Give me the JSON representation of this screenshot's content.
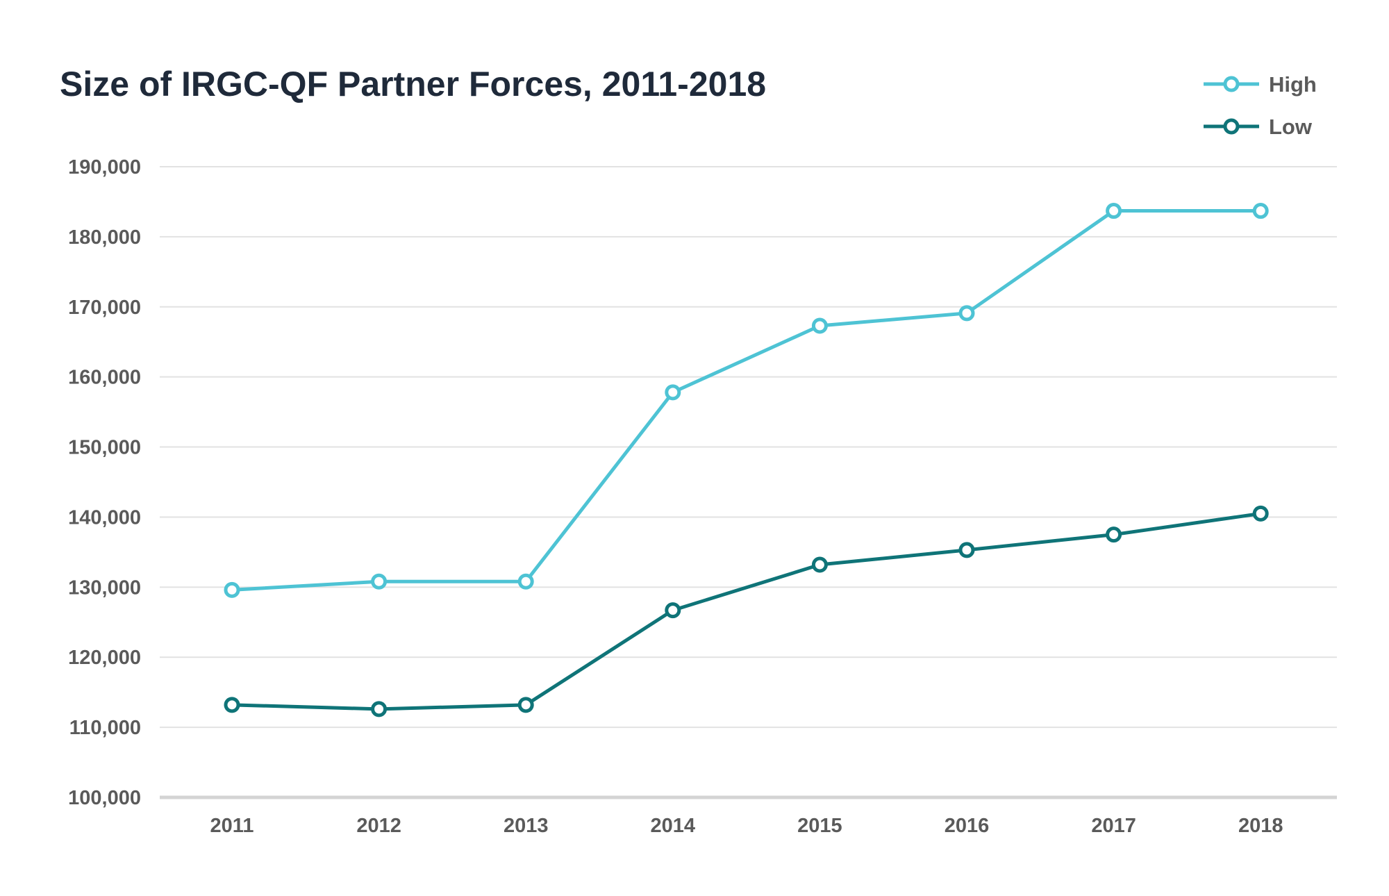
{
  "chart_data": {
    "type": "line",
    "title": "Size of IRGC-QF Partner Forces, 2011-2018",
    "xlabel": "",
    "ylabel": "",
    "x": [
      "2011",
      "2012",
      "2013",
      "2014",
      "2015",
      "2016",
      "2017",
      "2018"
    ],
    "ylim": [
      100000,
      190000
    ],
    "yticks": [
      100000,
      110000,
      120000,
      130000,
      140000,
      150000,
      160000,
      170000,
      180000,
      190000
    ],
    "ytick_labels": [
      "100,000",
      "110,000",
      "120,000",
      "130,000",
      "140,000",
      "150,000",
      "160,000",
      "170,000",
      "180,000",
      "190,000"
    ],
    "grid": true,
    "legend_position": "top-right",
    "series": [
      {
        "name": "High",
        "color": "#4ec3d4",
        "marker": "hollow-circle",
        "values": [
          129600,
          130800,
          130800,
          157800,
          167300,
          169100,
          183700,
          183700
        ]
      },
      {
        "name": "Low",
        "color": "#0f7478",
        "marker": "hollow-circle",
        "values": [
          113200,
          112600,
          113200,
          126700,
          133200,
          135300,
          137500,
          140500
        ]
      }
    ]
  }
}
